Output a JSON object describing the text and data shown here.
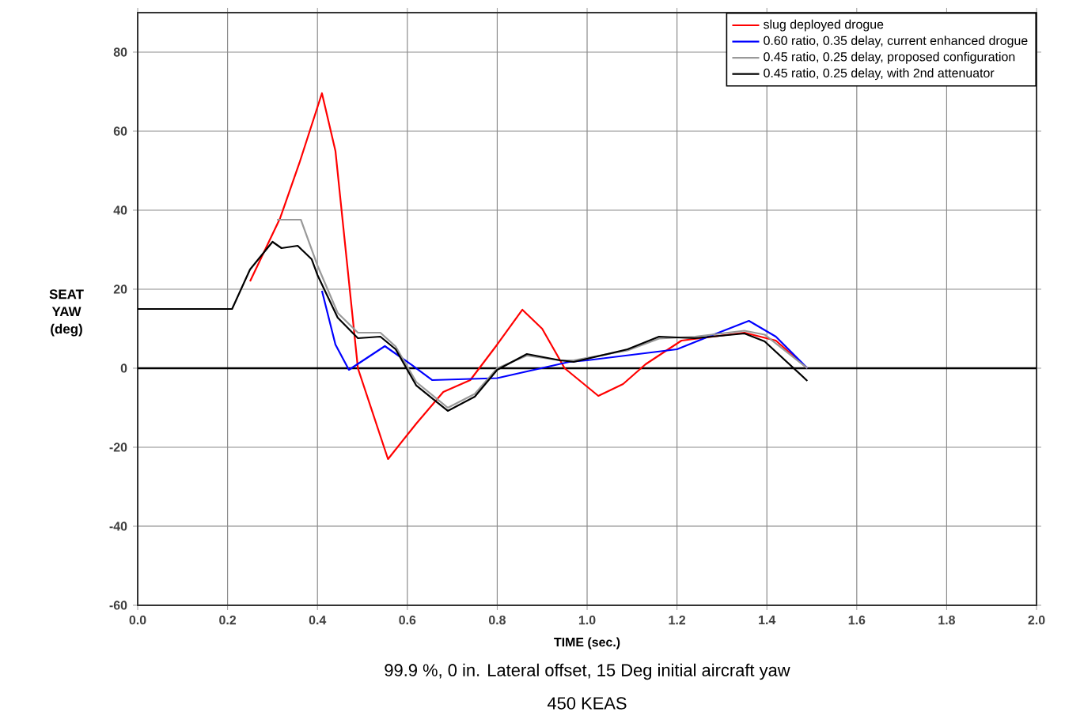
{
  "chart_data": {
    "type": "line",
    "xlabel": "TIME (sec.)",
    "ylabel": "SEAT YAW (deg)",
    "annotations": [
      "99.9 %, 0 in. Lateral offset, 15 Deg initial aircraft yaw",
      "450 KEAS"
    ],
    "xlim": [
      0,
      2.0
    ],
    "ylim": [
      -60,
      90
    ],
    "xticks": [
      {
        "value": 0,
        "label": "0.0"
      },
      0.2,
      0.4,
      0.6,
      0.8,
      {
        "value": 1.0,
        "label": "1.0"
      },
      1.2,
      1.4,
      1.6,
      1.8,
      {
        "value": 2.0,
        "label": "2.0"
      }
    ],
    "yticks": [
      -60,
      -40,
      -20,
      0,
      20,
      40,
      60,
      80
    ],
    "grid": true,
    "legend": "top right",
    "marker": "none",
    "line_style": "solid",
    "ref_lines": [
      {
        "axis": "y",
        "value": 0,
        "color": "#000000"
      }
    ],
    "series": [
      {
        "name": "slug deployed drogue",
        "color": "#ff0000",
        "x": [
          0.25,
          0.317,
          0.36,
          0.41,
          0.44,
          0.49,
          0.557,
          0.62,
          0.68,
          0.74,
          0.8,
          0.856,
          0.9,
          0.95,
          1.025,
          1.08,
          1.13,
          1.21,
          1.35,
          1.42,
          1.49
        ],
        "values": [
          22,
          38,
          52,
          69.6,
          55,
          0,
          -23,
          -14,
          -6,
          -3,
          6,
          14.8,
          10,
          0,
          -7,
          -4,
          1,
          7,
          9,
          7,
          0
        ]
      },
      {
        "name": "0.60 ratio, 0.35 delay, current enhanced drogue",
        "color": "#0000ff",
        "x": [
          0.41,
          0.44,
          0.47,
          0.55,
          0.61,
          0.655,
          0.8,
          0.96,
          1.0,
          1.2,
          1.27,
          1.36,
          1.42,
          1.49
        ],
        "values": [
          19.6,
          6,
          -0.4,
          5.6,
          0.8,
          -3,
          -2.5,
          1.6,
          2,
          4.8,
          8,
          12,
          8,
          0
        ]
      },
      {
        "name": "0.45 ratio, 0.25 delay, proposed configuration",
        "color": "#999999",
        "x": [
          0.31,
          0.363,
          0.4,
          0.445,
          0.49,
          0.54,
          0.574,
          0.62,
          0.69,
          0.75,
          0.8,
          0.866,
          0.94,
          0.97,
          1.09,
          1.16,
          1.24,
          1.35,
          1.395,
          1.49
        ],
        "values": [
          37.6,
          37.6,
          26,
          14,
          9,
          9,
          5.5,
          -3.5,
          -10,
          -6.5,
          0,
          3.2,
          2,
          2,
          4.5,
          7.5,
          8,
          9.5,
          8.5,
          0
        ]
      },
      {
        "name": "0.45 ratio, 0.25 delay, with 2nd attenuator",
        "color": "#000000",
        "x": [
          0,
          0.21,
          0.25,
          0.3,
          0.32,
          0.356,
          0.387,
          0.4,
          0.445,
          0.49,
          0.54,
          0.574,
          0.62,
          0.69,
          0.75,
          0.8,
          0.866,
          0.94,
          0.97,
          1.09,
          1.16,
          1.24,
          1.35,
          1.395,
          1.49
        ],
        "values": [
          15,
          15,
          25,
          32,
          30.4,
          31,
          27.6,
          23.6,
          12.8,
          7.6,
          8,
          4.8,
          -4.4,
          -10.8,
          -7.2,
          -0.4,
          3.6,
          2,
          1.6,
          4.8,
          8,
          7.6,
          8.8,
          6.8,
          -3.2
        ]
      }
    ]
  }
}
